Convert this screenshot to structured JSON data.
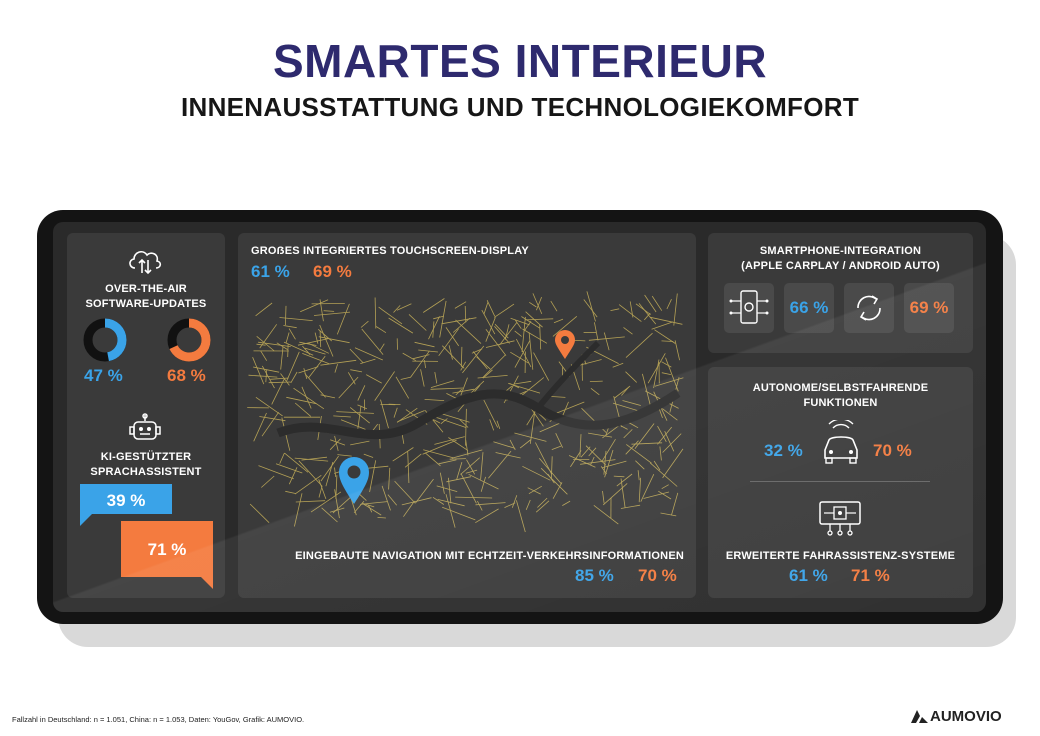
{
  "header": {
    "title": "SMARTES INTERIEUR",
    "subtitle": "INNENAUSSTATTUNG UND TECHNOLOGIEKOMFORT"
  },
  "colors": {
    "germany": "#3aa3e8",
    "china": "#f47b3f",
    "title": "#2e2a6e",
    "panel": "#3a3a3a"
  },
  "ota": {
    "label": "OVER-THE-AIR\nSOFTWARE-UPDATES",
    "icon": "cloud-update-icon",
    "de": {
      "text": "47 %",
      "value": 47
    },
    "cn": {
      "text": "68 %",
      "value": 68
    }
  },
  "voice": {
    "label": "KI-GESTÜTZTER\nSPRACHASSISTENT",
    "icon": "robot-icon",
    "de": {
      "text": "39 %",
      "value": 39
    },
    "cn": {
      "text": "71 %",
      "value": 71
    }
  },
  "touchscreen": {
    "label": "GROẞES INTEGRIERTES TOUCHSCREEN-DISPLAY",
    "de": "61 %",
    "cn": "69 %"
  },
  "navigation": {
    "label": "EINGEBAUTE NAVIGATION MIT ECHTZEIT-VERKEHRSINFORMATIONEN",
    "de": "85 %",
    "cn": "70 %"
  },
  "smartphone": {
    "label": "SMARTPHONE-INTEGRATION\n(APPLE CARPLAY / ANDROID AUTO)",
    "icon_de": "phone-settings-icon",
    "icon_cn": "sync-icon",
    "de": "66 %",
    "cn": "69 %"
  },
  "autonomous": {
    "label": "AUTONOME/SELBSTFAHRENDE\nFUNKTIONEN",
    "icon": "self-driving-car-icon",
    "de": "32 %",
    "cn": "70 %"
  },
  "adas": {
    "label": "ERWEITERTE FAHRASSISTENZ-SYSTEME",
    "icon": "assistance-system-icon",
    "de": "61 %",
    "cn": "71 %"
  },
  "footer": {
    "note": "Fallzahl in Deutschland: n = 1.051, China: n = 1.053, Daten: YouGov, Grafik: AUMOVIO.",
    "brand": "AUMOVIO"
  }
}
